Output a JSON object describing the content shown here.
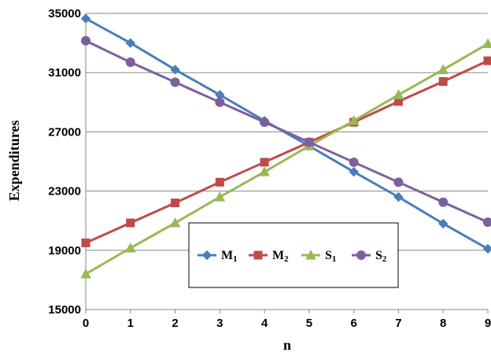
{
  "chart_data": {
    "type": "line",
    "title": "",
    "xlabel": "n",
    "ylabel": "Expenditures",
    "x": [
      0,
      1,
      2,
      3,
      4,
      5,
      6,
      7,
      8,
      9
    ],
    "xlim": [
      0,
      9
    ],
    "ylim": [
      15000,
      35000
    ],
    "yticks": [
      15000,
      19000,
      23000,
      27000,
      31000,
      35000
    ],
    "yticks_labels": [
      "15000",
      "19000",
      "23000",
      "27000",
      "31000",
      "35000"
    ],
    "xticks_labels": [
      "0",
      "1",
      "2",
      "3",
      "4",
      "5",
      "6",
      "7",
      "8",
      "9"
    ],
    "grid": "horizontal",
    "legend_position": "center-bottom (boxed)",
    "series": [
      {
        "name": "M",
        "sub": "1",
        "color": "#4A7EBB",
        "marker": "diamond",
        "values": [
          34650,
          33000,
          31200,
          29500,
          27750,
          26050,
          24300,
          22600,
          20800,
          19100
        ]
      },
      {
        "name": "M",
        "sub": "2",
        "color": "#BE4B48",
        "marker": "square",
        "values": [
          19500,
          20850,
          22200,
          23600,
          24950,
          26300,
          27650,
          29050,
          30400,
          31800
        ]
      },
      {
        "name": "S",
        "sub": "1",
        "color": "#98B954",
        "marker": "triangle",
        "values": [
          17400,
          19150,
          20850,
          22600,
          24300,
          26050,
          27750,
          29500,
          31200,
          32950
        ]
      },
      {
        "name": "S",
        "sub": "2",
        "color": "#7D5FA0",
        "marker": "circle",
        "values": [
          33150,
          31700,
          30350,
          29000,
          27650,
          26300,
          24950,
          23600,
          22250,
          20900
        ]
      }
    ]
  }
}
